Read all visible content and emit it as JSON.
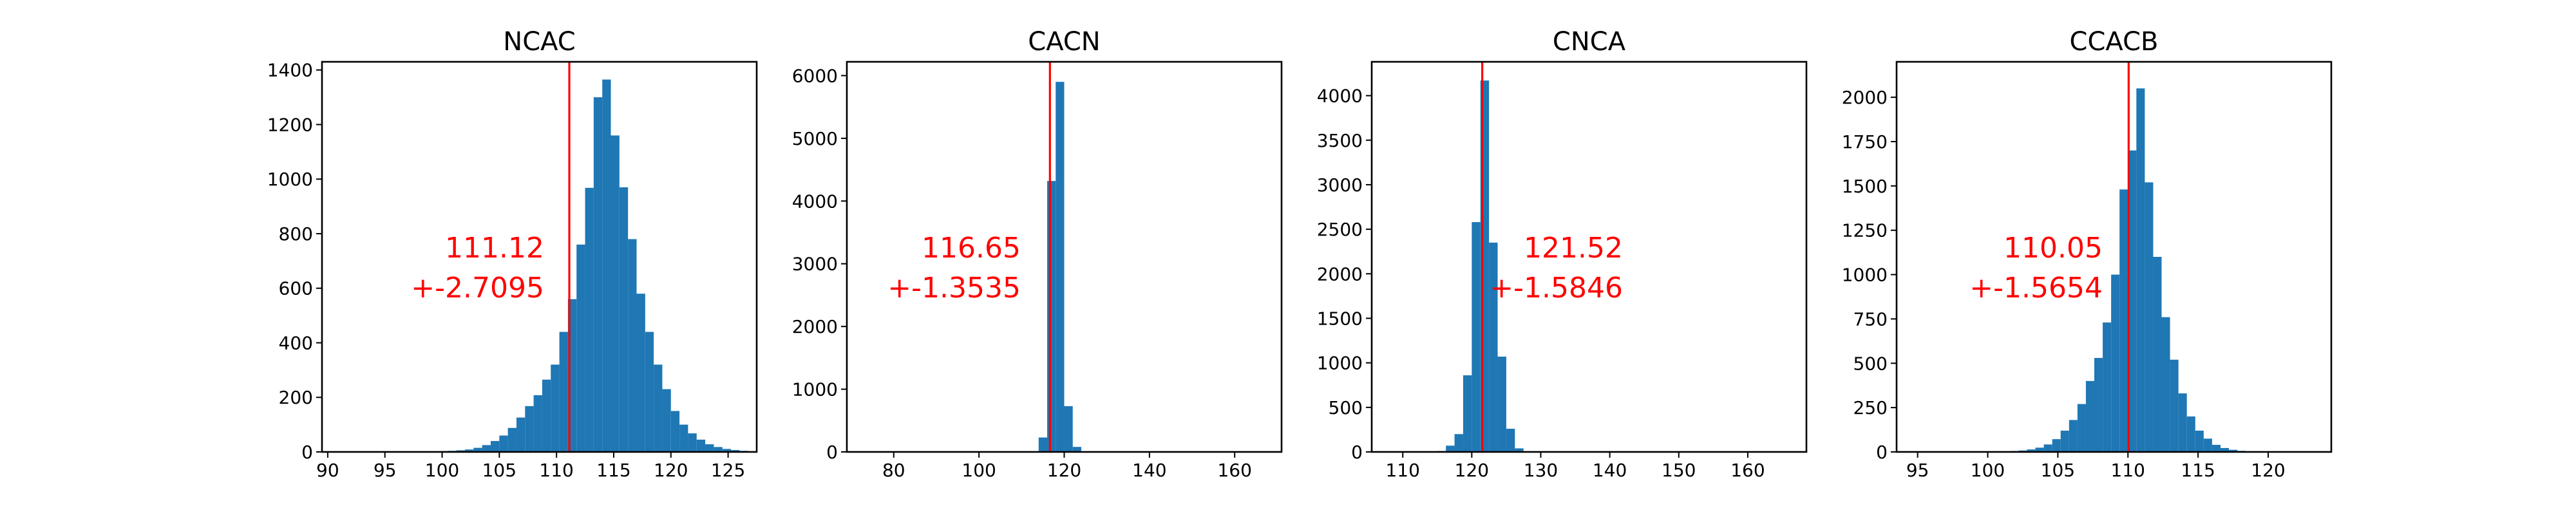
{
  "chart_data": [
    {
      "type": "bar",
      "title": "NCAC",
      "xlim": [
        89.5,
        127.5
      ],
      "ylim": [
        0,
        1430
      ],
      "xticks": [
        90,
        95,
        100,
        105,
        110,
        115,
        120,
        125
      ],
      "yticks": [
        0,
        200,
        400,
        600,
        800,
        1000,
        1200,
        1400
      ],
      "bin_width": 0.75,
      "bin_start": 97.5,
      "counts": [
        1,
        2,
        2,
        3,
        4,
        6,
        9,
        15,
        25,
        40,
        60,
        88,
        126,
        168,
        208,
        265,
        320,
        440,
        560,
        760,
        968,
        1300,
        1365,
        1160,
        970,
        780,
        580,
        440,
        320,
        230,
        150,
        100,
        68,
        45,
        28,
        18,
        11,
        7,
        4,
        2
      ],
      "mean_line": 111.12,
      "annotation": {
        "value": "111.12",
        "error": "+-2.7095"
      }
    },
    {
      "type": "bar",
      "title": "CACN",
      "xlim": [
        69,
        171
      ],
      "ylim": [
        0,
        6220
      ],
      "xticks": [
        80,
        100,
        120,
        140,
        160
      ],
      "yticks": [
        0,
        1000,
        2000,
        3000,
        4000,
        5000,
        6000
      ],
      "bin_width": 2,
      "bin_start": 112,
      "counts": [
        3,
        230,
        4320,
        5900,
        730,
        80
      ],
      "mean_line": 116.65,
      "annotation": {
        "value": "116.65",
        "error": "+-1.3535"
      }
    },
    {
      "type": "bar",
      "title": "CNCA",
      "xlim": [
        105.5,
        168.5
      ],
      "ylim": [
        0,
        4380
      ],
      "xticks": [
        110,
        120,
        130,
        140,
        150,
        160
      ],
      "yticks": [
        0,
        500,
        1000,
        1500,
        2000,
        2500,
        3000,
        3500,
        4000
      ],
      "bin_width": 1.25,
      "bin_start": 115,
      "counts": [
        10,
        70,
        200,
        860,
        2580,
        4170,
        2350,
        1070,
        260,
        40,
        5
      ],
      "mean_line": 121.52,
      "annotation": {
        "value": "121.52",
        "error": "+-1.5846"
      }
    },
    {
      "type": "bar",
      "title": "CCACB",
      "xlim": [
        93.5,
        124.5
      ],
      "ylim": [
        0,
        2200
      ],
      "xticks": [
        95,
        100,
        105,
        110,
        115,
        120
      ],
      "yticks": [
        0,
        250,
        500,
        750,
        1000,
        1250,
        1500,
        1750,
        2000
      ],
      "bin_width": 0.6,
      "bin_start": 99.8,
      "counts": [
        1,
        2,
        3,
        5,
        8,
        14,
        24,
        42,
        72,
        120,
        180,
        270,
        400,
        530,
        730,
        1000,
        1480,
        1700,
        2050,
        1520,
        1100,
        760,
        520,
        330,
        200,
        120,
        75,
        40,
        22,
        12,
        6,
        3
      ],
      "mean_line": 110.05,
      "annotation": {
        "value": "110.05",
        "error": "+-1.5654"
      }
    }
  ],
  "colors": {
    "bar": "#1f77b4",
    "mean_line": "#ff0000",
    "annotation": "#ff0000"
  }
}
